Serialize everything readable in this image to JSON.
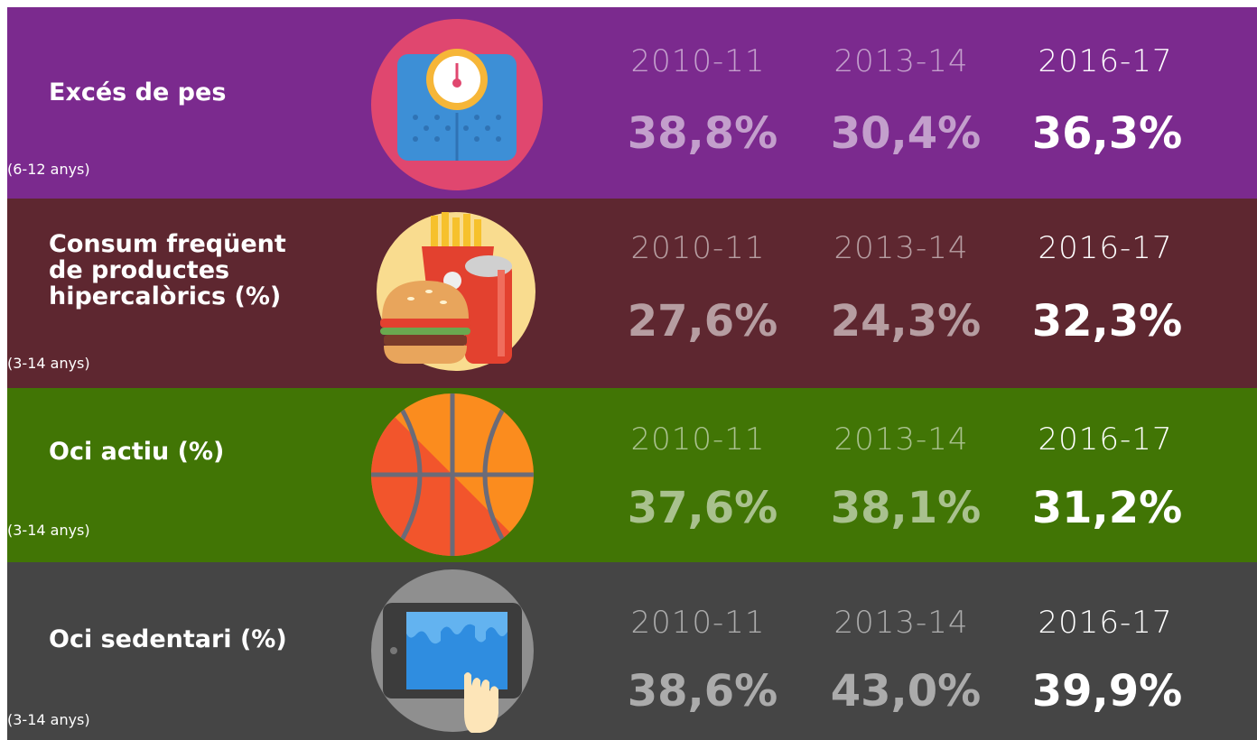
{
  "rows": [
    {
      "title": [
        "Excés de pes"
      ],
      "subtitle": "(6-12 anys)",
      "periods": [
        "2010-11",
        "2013-14",
        "2016-17"
      ],
      "values": [
        "38,8%",
        "30,4%",
        "36,3%"
      ]
    },
    {
      "title": [
        "Consum freqüent",
        "de productes",
        "hipercalòrics (%)"
      ],
      "subtitle": "(3-14 anys)",
      "periods": [
        "2010-11",
        "2013-14",
        "2016-17"
      ],
      "values": [
        "27,6%",
        "24,3%",
        "32,3%"
      ]
    },
    {
      "title": [
        "Oci actiu (%)"
      ],
      "subtitle": "(3-14 anys)",
      "periods": [
        "2010-11",
        "2013-14",
        "2016-17"
      ],
      "values": [
        "37,6%",
        "38,1%",
        "31,2%"
      ]
    },
    {
      "title": [
        "Oci sedentari (%)"
      ],
      "subtitle": "(3-14 anys)",
      "periods": [
        "2010-11",
        "2013-14",
        "2016-17"
      ],
      "values": [
        "38,6%",
        "43,0%",
        "39,9%"
      ]
    }
  ]
}
